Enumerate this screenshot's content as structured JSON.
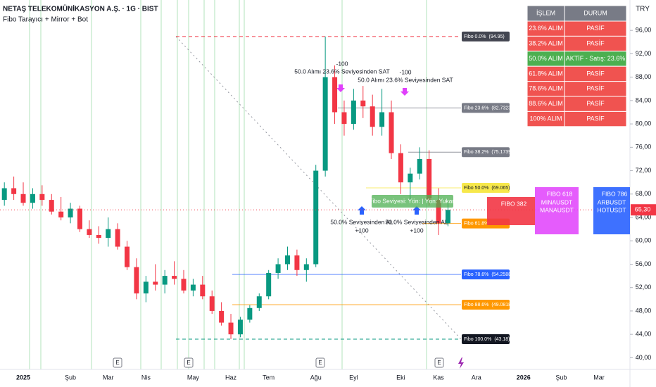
{
  "chart_data": {
    "type": "candlestick",
    "title": "NETAŞ TELEKOMÜNİKASYON A.Ş. · 1G · BIST",
    "subtitle": "Fibo Tarayıcı + Mirror + Bot",
    "currency": "TRY",
    "categories": [
      null,
      null,
      "2025",
      null,
      null,
      null,
      null,
      "Şub",
      null,
      null,
      null,
      "Mar",
      null,
      null,
      null,
      "Nis",
      null,
      null,
      null,
      null,
      "May",
      null,
      null,
      null,
      "Haz",
      null,
      null,
      null,
      "Tem",
      null,
      null,
      null,
      null,
      "Ağu",
      null,
      null,
      null,
      "Eyl",
      null,
      null,
      null,
      null,
      "Eki",
      null,
      null,
      null,
      "Kas",
      null,
      null,
      null,
      "Ara",
      null,
      null,
      null,
      null,
      "2026",
      null,
      null,
      null,
      "Şub",
      null,
      null,
      null,
      "Mar",
      null,
      null
    ],
    "open": [
      67,
      69,
      68,
      66.5,
      68,
      67,
      65,
      64,
      65.5,
      62,
      61,
      60.5,
      62,
      59,
      55.5,
      51,
      53,
      52.5,
      54,
      53.5,
      51.5,
      52.5,
      50.5,
      48,
      46,
      44,
      46.5,
      48.5,
      50.5,
      54.5,
      56,
      57.5,
      55,
      56,
      72,
      88,
      82,
      80,
      84,
      83,
      79.5,
      82,
      75,
      70,
      71.5,
      74,
      67,
      63,
      null,
      null,
      null,
      null,
      null,
      null,
      null,
      null,
      null,
      null,
      null,
      null,
      null,
      null,
      null,
      null,
      null,
      null
    ],
    "high": [
      70,
      71,
      70,
      69,
      69.5,
      68,
      67.5,
      66.5,
      66,
      63.5,
      62.5,
      64,
      63,
      60,
      57,
      54,
      56,
      55,
      56.5,
      55,
      53.5,
      54,
      51.5,
      49.5,
      47.5,
      47,
      49,
      51,
      55,
      57,
      59,
      58.5,
      57,
      73,
      94.95,
      90,
      84,
      86,
      86.5,
      85,
      86,
      84,
      76.5,
      72.5,
      76,
      75.5,
      69,
      66.5,
      null,
      null,
      null,
      null,
      null,
      null,
      null,
      null,
      null,
      null,
      null,
      null,
      null,
      null,
      null,
      null,
      null,
      null
    ],
    "low": [
      66,
      67,
      66,
      65.5,
      66,
      64.5,
      63.5,
      63,
      61.5,
      60.5,
      59.5,
      59,
      58.5,
      55,
      50,
      49.5,
      51.5,
      51,
      52.5,
      51,
      50.5,
      50,
      47.5,
      45.5,
      43.2,
      43.5,
      46,
      48,
      50,
      53.5,
      55,
      54,
      53,
      55.5,
      71,
      80,
      78,
      79,
      81,
      78,
      78,
      74,
      68,
      67,
      70.5,
      66,
      61,
      62.5,
      null,
      null,
      null,
      null,
      null,
      null,
      null,
      null,
      null,
      null,
      null,
      null,
      null,
      null,
      null,
      null,
      null,
      null
    ],
    "close": [
      69,
      68,
      66.5,
      68,
      67,
      65,
      64,
      65.5,
      62,
      61,
      60.5,
      62,
      59,
      55.5,
      51,
      53,
      52.5,
      54,
      53.5,
      51.5,
      52.5,
      50.5,
      48,
      46,
      44,
      46.5,
      48.5,
      50.5,
      54.5,
      56,
      57.5,
      55,
      56,
      72,
      88,
      82,
      80,
      84,
      83,
      79.5,
      82,
      75,
      70,
      71.5,
      74,
      67,
      63,
      65.3,
      null,
      null,
      null,
      null,
      null,
      null,
      null,
      null,
      null,
      null,
      null,
      null,
      null,
      null,
      null,
      null,
      null,
      null
    ],
    "up_color": "#089981",
    "down_color": "#f23645",
    "ylim": [
      38,
      101.2
    ],
    "yticks": [
      {
        "value": 40,
        "label": "40,00"
      },
      {
        "value": 44,
        "label": "44,00"
      },
      {
        "value": 48,
        "label": "48,00"
      },
      {
        "value": 52,
        "label": "52,00"
      },
      {
        "value": 56,
        "label": "56,00"
      },
      {
        "value": 60,
        "label": "60,00"
      },
      {
        "value": 64,
        "label": "64,00"
      },
      {
        "value": 68,
        "label": "68,00"
      },
      {
        "value": 72,
        "label": "72,00"
      },
      {
        "value": 76,
        "label": "76,00"
      },
      {
        "value": 80,
        "label": "80,00"
      },
      {
        "value": 84,
        "label": "84,00"
      },
      {
        "value": 88,
        "label": "88,00"
      },
      {
        "value": 92,
        "label": "92,00"
      },
      {
        "value": 96,
        "label": "96,00"
      }
    ],
    "grid": false,
    "last_price": 65.3,
    "last_price_label": "65,30",
    "last_price_color": "#f23645",
    "fib_levels": [
      {
        "name": "Fibo 0.0%",
        "value": 94.95,
        "value_label": "(94.95)",
        "color": "#434651"
      },
      {
        "name": "Fibo 23.6%",
        "value": 82.7323,
        "value_label": "(82.7323)",
        "color": "#787b86"
      },
      {
        "name": "Fibo 38.2%",
        "value": 75.1739,
        "value_label": "(75.1739)",
        "color": "#787b86"
      },
      {
        "name": "Fibo 50.0%",
        "value": 69.065,
        "value_label": "(69.065)",
        "color": "#f7e84b"
      },
      {
        "name": "Fibo 61.8%",
        "value": 62.96,
        "color": "#ff9800"
      },
      {
        "name": "Fibo 78.6%",
        "value": 54.2588,
        "value_label": "(54.2588)",
        "color": "#2962ff"
      },
      {
        "name": "Fibo 88.6%",
        "value": 49.0818,
        "value_label": "(49.0818)",
        "color": "#ff9800"
      },
      {
        "name": "Fibo 100.0%",
        "value": 43.18,
        "value_label": "(43.18)",
        "color": "#131722"
      }
    ],
    "annotations": [
      "-100",
      "50.0 Alımı 23.6% Seviyesinden SAT",
      "-100",
      "50.0 Alımı 23.6% Seviyesinden SAT",
      "50.0% Seviyesinden AL",
      "+100",
      "50.0% Seviyesinden AL",
      "+100",
      "Fibo Seviyesi: Yön: | Yön: Yukarı"
    ],
    "event_markers": [
      "E",
      "E",
      "E",
      "E"
    ],
    "signal_boxes": [
      {
        "title": "FIBO 382",
        "color": "#f23645"
      },
      {
        "title": "FIBO 618",
        "lines": [
          "MINAUSDT",
          "MANAUSDT"
        ],
        "color": "#e040fb"
      },
      {
        "title": "FIBO 786",
        "lines": [
          "ARBUSDT",
          "HOTUSDT"
        ],
        "color": "#2962ff"
      }
    ]
  },
  "table": {
    "header": [
      "İŞLEM",
      "DURUM"
    ],
    "rows": [
      [
        "23.6% ALIM",
        "PASİF"
      ],
      [
        "38.2% ALIM",
        "PASİF"
      ],
      [
        "50.0% ALIM",
        "AKTİF - Satış: 23.6%"
      ],
      [
        "61.8% ALIM",
        "PASİF"
      ],
      [
        "78.6% ALIM",
        "PASİF"
      ],
      [
        "88.6% ALIM",
        "PASİF"
      ],
      [
        "100% ALIM",
        "PASİF"
      ]
    ],
    "header_color": "#787b86",
    "row_colors": [
      "#f05350",
      "#f05350",
      "#4caf50",
      "#f05350",
      "#f05350",
      "#f05350",
      "#f05350"
    ]
  }
}
